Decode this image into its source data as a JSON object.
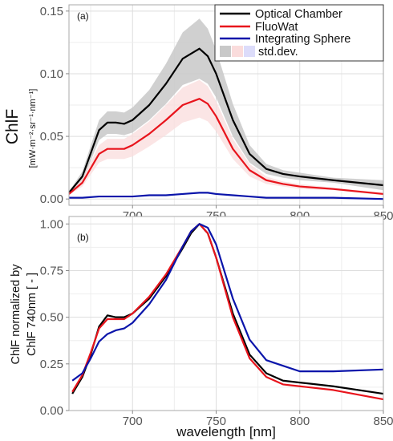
{
  "colors": {
    "optical": "#000000",
    "fluowat": "#e8141c",
    "sphere": "#0a14aa",
    "optical_std": "#c8c8c8",
    "fluowat_std": "#fadcdc",
    "sphere_std": "#dcdcfa"
  },
  "chart_data": [
    {
      "type": "line",
      "panel_label": "(a)",
      "title": "",
      "xlabel": "",
      "ylabel": "ChlF",
      "yunit": "[mW·m⁻²·sr⁻¹·nm⁻¹]",
      "xlim": [
        662,
        850
      ],
      "ylim": [
        -0.005,
        0.155
      ],
      "xticks": [
        700,
        750,
        800,
        850
      ],
      "yticks": [
        0.0,
        0.05,
        0.1,
        0.15
      ],
      "xtick_labels": [
        "700",
        "750",
        "800",
        "850"
      ],
      "ytick_labels": [
        "0.00",
        "0.05",
        "0.10",
        "0.15"
      ],
      "grid": true,
      "legend": {
        "position": "top-right",
        "entries": [
          "Optical Chamber",
          "FluoWat",
          "Integrating Sphere"
        ],
        "std_label": "std.dev."
      },
      "x": [
        662,
        670,
        680,
        685,
        690,
        695,
        700,
        710,
        720,
        730,
        740,
        745,
        750,
        760,
        770,
        780,
        790,
        800,
        820,
        850
      ],
      "series": [
        {
          "name": "Optical Chamber",
          "values": [
            0.005,
            0.018,
            0.055,
            0.061,
            0.061,
            0.06,
            0.063,
            0.075,
            0.092,
            0.112,
            0.12,
            0.114,
            0.1,
            0.063,
            0.036,
            0.024,
            0.02,
            0.018,
            0.015,
            0.011
          ],
          "std": [
            0.001,
            0.004,
            0.008,
            0.009,
            0.009,
            0.009,
            0.01,
            0.012,
            0.016,
            0.021,
            0.024,
            0.022,
            0.019,
            0.013,
            0.007,
            0.004,
            0.003,
            0.003,
            0.002,
            0.004
          ]
        },
        {
          "name": "FluoWat",
          "values": [
            0.004,
            0.013,
            0.036,
            0.04,
            0.04,
            0.04,
            0.043,
            0.052,
            0.063,
            0.075,
            0.08,
            0.076,
            0.066,
            0.04,
            0.023,
            0.015,
            0.012,
            0.01,
            0.008,
            0.004
          ],
          "std": [
            0.001,
            0.003,
            0.007,
            0.008,
            0.008,
            0.008,
            0.009,
            0.01,
            0.012,
            0.014,
            0.015,
            0.014,
            0.012,
            0.008,
            0.005,
            0.003,
            0.002,
            0.002,
            0.001,
            0.001
          ]
        },
        {
          "name": "Integrating Sphere",
          "values": [
            0.001,
            0.001,
            0.002,
            0.002,
            0.002,
            0.002,
            0.002,
            0.003,
            0.003,
            0.004,
            0.005,
            0.005,
            0.004,
            0.003,
            0.002,
            0.001,
            0.001,
            0.001,
            0.001,
            0.0
          ],
          "std": [
            0.0,
            0.0,
            0.0,
            0.0,
            0.0,
            0.0,
            0.0,
            0.0,
            0.0,
            0.0005,
            0.0005,
            0.0005,
            0.0005,
            0.0,
            0.0,
            0.0,
            0.0,
            0.0,
            0.0,
            0.0
          ]
        }
      ]
    },
    {
      "type": "line",
      "panel_label": "(b)",
      "title": "",
      "xlabel": "wavelength [nm]",
      "ylabel": "ChlF normalized by ChlF 740nm [ - ]",
      "ylabel_lines": [
        "ChlF normalized by",
        "ChlF 740nm [ - ]"
      ],
      "xlim": [
        662,
        850
      ],
      "ylim": [
        0.0,
        1.04
      ],
      "xticks": [
        700,
        750,
        800,
        850
      ],
      "yticks": [
        0.0,
        0.25,
        0.5,
        0.75,
        1.0
      ],
      "xtick_labels": [
        "700",
        "750",
        "800",
        "850"
      ],
      "ytick_labels": [
        "0.00",
        "0.25",
        "0.50",
        "0.75",
        "1.00"
      ],
      "grid": true,
      "x": [
        664,
        670,
        675,
        680,
        685,
        690,
        695,
        700,
        710,
        720,
        730,
        735,
        740,
        745,
        750,
        760,
        770,
        780,
        790,
        800,
        820,
        850
      ],
      "series": [
        {
          "name": "Optical Chamber",
          "values": [
            0.09,
            0.18,
            0.3,
            0.45,
            0.51,
            0.5,
            0.5,
            0.52,
            0.6,
            0.72,
            0.87,
            0.95,
            1.0,
            0.95,
            0.82,
            0.52,
            0.3,
            0.2,
            0.16,
            0.15,
            0.13,
            0.09
          ]
        },
        {
          "name": "FluoWat",
          "values": [
            0.1,
            0.19,
            0.31,
            0.44,
            0.49,
            0.49,
            0.49,
            0.52,
            0.61,
            0.73,
            0.88,
            0.96,
            1.0,
            0.95,
            0.82,
            0.5,
            0.28,
            0.18,
            0.14,
            0.13,
            0.11,
            0.06
          ]
        },
        {
          "name": "Integrating Sphere",
          "values": [
            0.16,
            0.2,
            0.28,
            0.37,
            0.41,
            0.43,
            0.44,
            0.47,
            0.57,
            0.7,
            0.88,
            0.96,
            1.0,
            0.98,
            0.89,
            0.6,
            0.38,
            0.27,
            0.24,
            0.21,
            0.21,
            0.22
          ]
        }
      ]
    }
  ]
}
